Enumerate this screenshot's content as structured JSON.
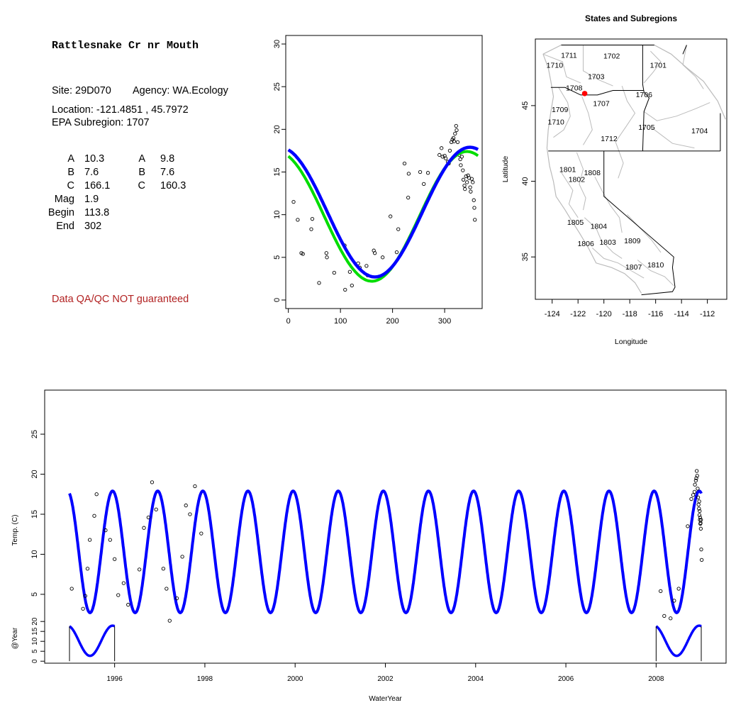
{
  "site": {
    "name": "Rattlesnake Cr nr Mouth",
    "site_line": "Site: 29D070",
    "agency_line": "Agency: WA.Ecology",
    "location_line": "Location: -121.4851 , 45.7972",
    "subregion_line": "EPA Subregion: 1707",
    "qa_note": "Data QA/QC NOT guaranteed"
  },
  "params": {
    "left": [
      {
        "label": "A",
        "value": "10.3"
      },
      {
        "label": "B",
        "value": "7.6"
      },
      {
        "label": "C",
        "value": "166.1"
      },
      {
        "label": "Mag",
        "value": "1.9"
      },
      {
        "label": "Begin",
        "value": "113.8"
      },
      {
        "label": "End",
        "value": "302"
      }
    ],
    "right": [
      {
        "label": "A",
        "value": "9.8"
      },
      {
        "label": "B",
        "value": "7.6"
      },
      {
        "label": "C",
        "value": "160.3"
      }
    ]
  },
  "colors": {
    "fit_blue": "#0000ff",
    "fit_green": "#00dd00",
    "site_marker": "#ff0000",
    "qa_text": "#b22222",
    "axis": "#000000",
    "map_boundary": "#bbbbbb"
  },
  "chart_data": [
    {
      "type": "scatter",
      "id": "annual",
      "title": "",
      "xlabel": "",
      "ylabel": "",
      "xlim": [
        -5,
        372
      ],
      "ylim": [
        -1,
        31
      ],
      "x_ticks": [
        0,
        100,
        200,
        300
      ],
      "y_ticks": [
        0,
        5,
        10,
        15,
        20,
        25,
        30
      ],
      "points": [
        [
          10,
          11.5
        ],
        [
          18,
          9.4
        ],
        [
          25,
          5.5
        ],
        [
          28,
          5.4
        ],
        [
          44,
          8.3
        ],
        [
          46,
          9.5
        ],
        [
          59,
          2
        ],
        [
          73,
          5.5
        ],
        [
          74,
          5
        ],
        [
          88,
          3.2
        ],
        [
          108,
          6.4
        ],
        [
          109,
          1.2
        ],
        [
          118,
          3.3
        ],
        [
          122,
          1.7
        ],
        [
          134,
          4.3
        ],
        [
          137,
          3.8
        ],
        [
          150,
          4
        ],
        [
          152,
          2.9
        ],
        [
          164,
          5.8
        ],
        [
          166,
          5.5
        ],
        [
          181,
          5
        ],
        [
          196,
          9.8
        ],
        [
          208,
          5.6
        ],
        [
          211,
          8.3
        ],
        [
          223,
          16
        ],
        [
          230,
          12
        ],
        [
          231,
          14.8
        ],
        [
          253,
          15
        ],
        [
          260,
          13.6
        ],
        [
          268,
          14.9
        ],
        [
          290,
          17
        ],
        [
          294,
          17.8
        ],
        [
          296,
          16.8
        ],
        [
          300,
          16.9
        ],
        [
          302,
          16.6
        ],
        [
          306,
          16.2
        ],
        [
          308,
          16
        ],
        [
          310,
          17.5
        ],
        [
          313,
          18.5
        ],
        [
          315,
          18.8
        ],
        [
          317,
          19
        ],
        [
          318,
          18.6
        ],
        [
          320,
          19.5
        ],
        [
          322,
          20.4
        ],
        [
          323,
          19.9
        ],
        [
          325,
          18.5
        ],
        [
          327,
          17.2
        ],
        [
          328,
          17
        ],
        [
          330,
          16.5
        ],
        [
          331,
          15.8
        ],
        [
          333,
          16.8
        ],
        [
          335,
          15.2
        ],
        [
          336,
          14.1
        ],
        [
          338,
          13.4
        ],
        [
          339,
          13
        ],
        [
          341,
          14.5
        ],
        [
          343,
          13.8
        ],
        [
          345,
          14.6
        ],
        [
          347,
          14.3
        ],
        [
          349,
          13.2
        ],
        [
          350,
          12.7
        ],
        [
          352,
          14.2
        ],
        [
          354,
          13.8
        ],
        [
          356,
          11.7
        ],
        [
          357,
          10.8
        ],
        [
          358,
          9.4
        ]
      ],
      "series": [
        {
          "name": "",
          "color": "green",
          "A": 9.8,
          "B": 7.6,
          "C": 160.3
        },
        {
          "name": "",
          "color": "blue",
          "A": 10.3,
          "B": 7.6,
          "C": 166.1
        }
      ]
    },
    {
      "type": "map",
      "id": "map",
      "title": "States and Subregions",
      "xlabel": "Longitude",
      "ylabel": "Latitude",
      "xlim": [
        -125.3,
        -110.5
      ],
      "ylim": [
        32.2,
        49.4
      ],
      "x_ticks": [
        -124,
        -122,
        -120,
        -118,
        -116,
        -114,
        -112
      ],
      "y_ticks": [
        35,
        40,
        45
      ],
      "site": {
        "lon": -121.4851,
        "lat": 45.7972
      },
      "labels": [
        {
          "text": "1702",
          "lon": -119.4,
          "lat": 48.3
        },
        {
          "text": "1701",
          "lon": -115.8,
          "lat": 47.7
        },
        {
          "text": "1711",
          "lon": -122.7,
          "lat": 48.35
        },
        {
          "text": "1710",
          "lon": -123.8,
          "lat": 47.7
        },
        {
          "text": "1703",
          "lon": -120.6,
          "lat": 46.95
        },
        {
          "text": "1708",
          "lon": -122.3,
          "lat": 46.2
        },
        {
          "text": "1706",
          "lon": -116.9,
          "lat": 45.75
        },
        {
          "text": "1707",
          "lon": -120.2,
          "lat": 45.15
        },
        {
          "text": "1709",
          "lon": -123.4,
          "lat": 44.75
        },
        {
          "text": "1710",
          "lon": -123.7,
          "lat": 43.95
        },
        {
          "text": "1705",
          "lon": -116.7,
          "lat": 43.6
        },
        {
          "text": "1704",
          "lon": -112.6,
          "lat": 43.35
        },
        {
          "text": "1712",
          "lon": -119.6,
          "lat": 42.85
        },
        {
          "text": "1801",
          "lon": -122.8,
          "lat": 40.8
        },
        {
          "text": "1808",
          "lon": -120.9,
          "lat": 40.6
        },
        {
          "text": "1802",
          "lon": -122.1,
          "lat": 40.15
        },
        {
          "text": "1805",
          "lon": -122.2,
          "lat": 37.3
        },
        {
          "text": "1804",
          "lon": -120.4,
          "lat": 37.05
        },
        {
          "text": "1806",
          "lon": -121.4,
          "lat": 35.9
        },
        {
          "text": "1803",
          "lon": -119.7,
          "lat": 36.0
        },
        {
          "text": "1809",
          "lon": -117.8,
          "lat": 36.1
        },
        {
          "text": "1810",
          "lon": -116.0,
          "lat": 34.5
        },
        {
          "text": "1807",
          "lon": -117.7,
          "lat": 34.35
        }
      ]
    },
    {
      "type": "line",
      "id": "timeseries",
      "title": "",
      "xlabel": "WaterYear",
      "ylabel": "Temp. (C)",
      "ylabel_year": "@Year",
      "xlim": [
        1994.45,
        2009.55
      ],
      "ylim_main": [
        2.6,
        30.5
      ],
      "ylim_year": [
        -1,
        24
      ],
      "x_ticks": [
        1996,
        1998,
        2000,
        2002,
        2004,
        2006,
        2008
      ],
      "y_ticks_main": [
        5,
        10,
        15,
        20,
        25
      ],
      "y_ticks_year": [
        0,
        5,
        10,
        15,
        20
      ],
      "fit": {
        "A": 10.3,
        "B": 7.6,
        "C": 166.1,
        "start": 1995.0,
        "end": 2009.0
      },
      "year_fit_ranges": [
        [
          1995.0,
          1996.0
        ],
        [
          2008.0,
          2009.0
        ]
      ],
      "points": [
        [
          1995.05,
          5.7
        ],
        [
          1995.3,
          3.2
        ],
        [
          1995.35,
          4.8
        ],
        [
          1995.4,
          8.2
        ],
        [
          1995.45,
          11.8
        ],
        [
          1995.55,
          14.8
        ],
        [
          1995.6,
          17.5
        ],
        [
          1995.8,
          13
        ],
        [
          1995.9,
          11.8
        ],
        [
          1996.0,
          9.4
        ],
        [
          1996.08,
          4.9
        ],
        [
          1996.2,
          6.4
        ],
        [
          1996.3,
          3.7
        ],
        [
          1996.55,
          8.1
        ],
        [
          1996.65,
          13.3
        ],
        [
          1996.75,
          14.6
        ],
        [
          1996.83,
          19
        ],
        [
          1996.92,
          15.6
        ],
        [
          1997.08,
          8.2
        ],
        [
          1997.15,
          5.7
        ],
        [
          1997.22,
          1.7
        ],
        [
          1997.38,
          4.5
        ],
        [
          1997.5,
          9.7
        ],
        [
          1997.58,
          16.1
        ],
        [
          1997.67,
          15
        ],
        [
          1997.78,
          18.5
        ],
        [
          1997.92,
          12.6
        ],
        [
          2008.1,
          5.4
        ],
        [
          2008.18,
          2.3
        ],
        [
          2008.32,
          2
        ],
        [
          2008.4,
          4.2
        ],
        [
          2008.5,
          5.7
        ],
        [
          2008.7,
          13.5
        ],
        [
          2008.78,
          16.9
        ],
        [
          2008.82,
          17.4
        ],
        [
          2008.85,
          17.8
        ],
        [
          2008.86,
          18.7
        ],
        [
          2008.88,
          19.2
        ],
        [
          2008.89,
          19.5
        ],
        [
          2008.9,
          20.4
        ],
        [
          2008.91,
          19.8
        ],
        [
          2008.92,
          18.2
        ],
        [
          2008.93,
          17.1
        ],
        [
          2008.94,
          16.2
        ],
        [
          2008.95,
          15.7
        ],
        [
          2008.96,
          14.9
        ],
        [
          2008.97,
          14.3
        ],
        [
          2008.98,
          13.8
        ],
        [
          2008.99,
          13.2
        ],
        [
          2009.0,
          10.6
        ],
        [
          2009.01,
          9.3
        ],
        [
          2008.955,
          16.6
        ],
        [
          2008.965,
          15.4
        ],
        [
          2008.975,
          14.6
        ],
        [
          2008.985,
          13.9
        ],
        [
          2008.995,
          14.3
        ]
      ]
    }
  ]
}
